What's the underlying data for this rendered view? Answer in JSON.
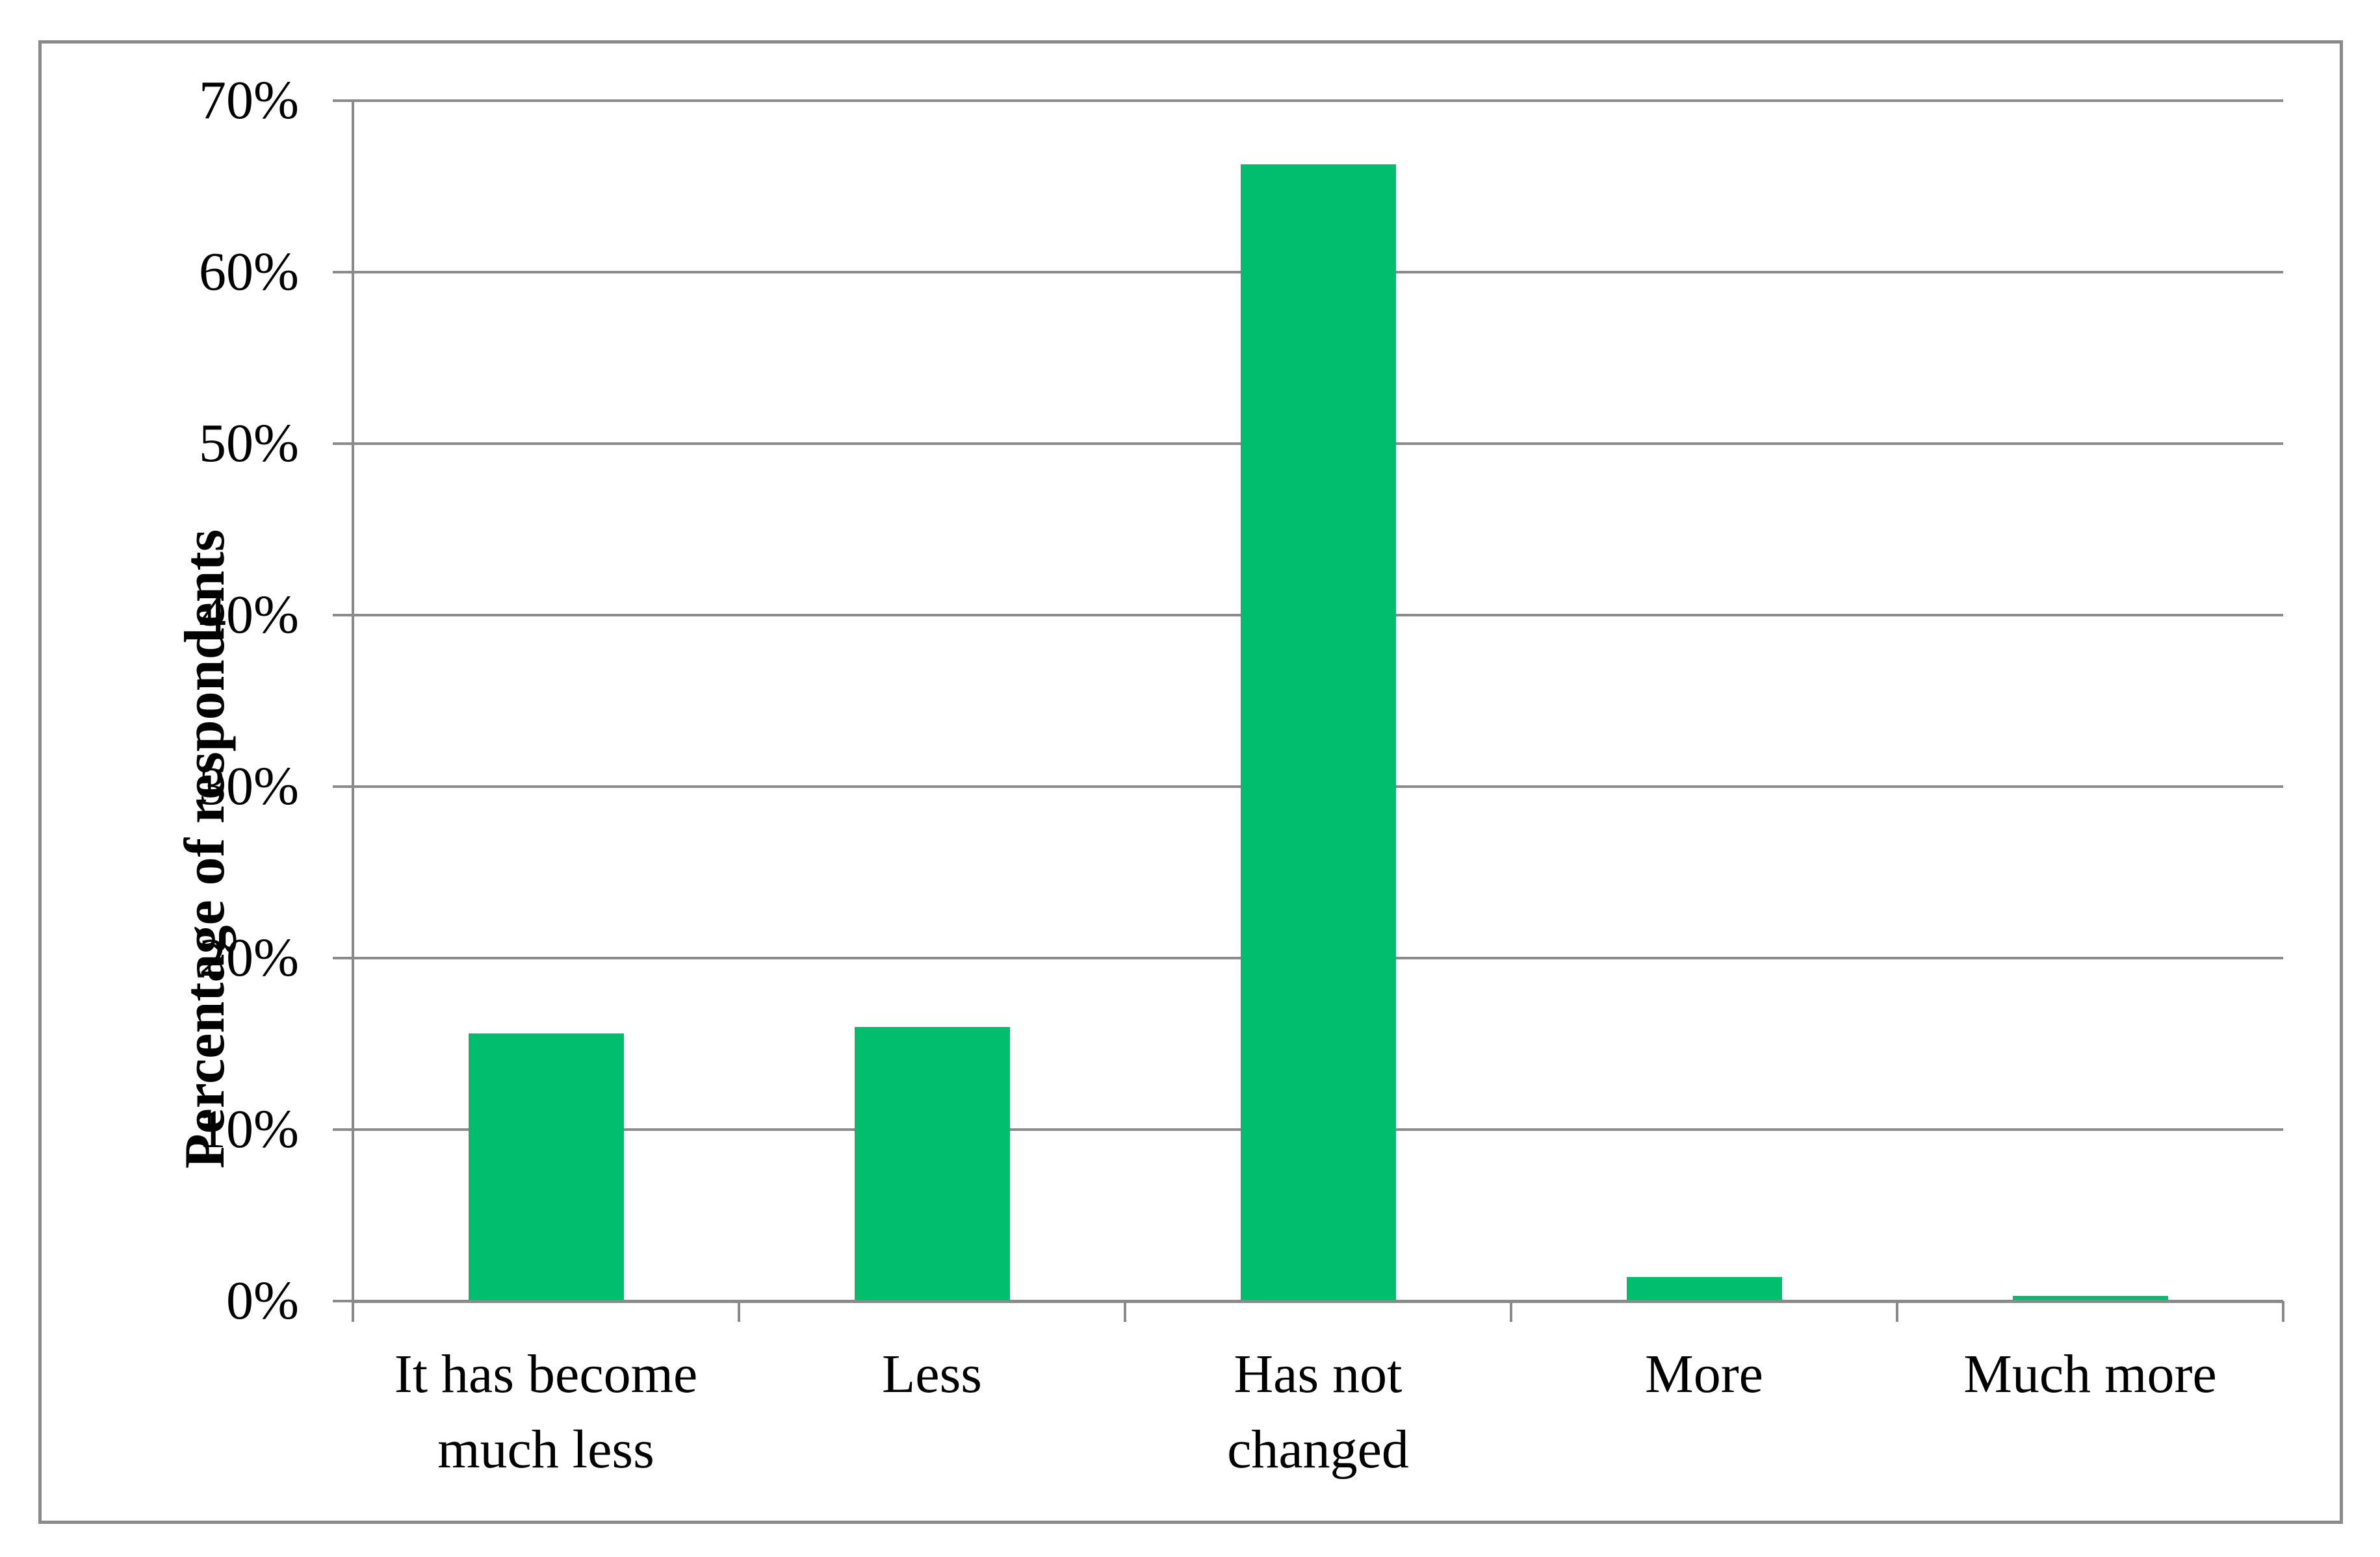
{
  "chart_data": {
    "type": "bar",
    "title": "",
    "xlabel": "",
    "ylabel": "Percentage of respondents",
    "categories": [
      "It has become much less",
      "Less",
      "Has not changed",
      "More",
      "Much more"
    ],
    "category_lines": [
      [
        "It has become",
        "much less"
      ],
      [
        "Less"
      ],
      [
        "Has not",
        "changed"
      ],
      [
        "More"
      ],
      [
        "Much more"
      ]
    ],
    "values": [
      15.6,
      16.0,
      66.3,
      1.4,
      0.3
    ],
    "unit": "%",
    "series_name": "Percentage of respondents",
    "ylim": [
      0,
      70
    ],
    "ytick_step": 10,
    "ytick_labels": [
      "0%",
      "10%",
      "20%",
      "30%",
      "40%",
      "50%",
      "60%",
      "70%"
    ],
    "grid": true,
    "legend_position": "none",
    "bar_color": "#00be6e",
    "axis_color": "#8a8a8a",
    "text_color": "#000000",
    "background_color": "#ffffff"
  }
}
